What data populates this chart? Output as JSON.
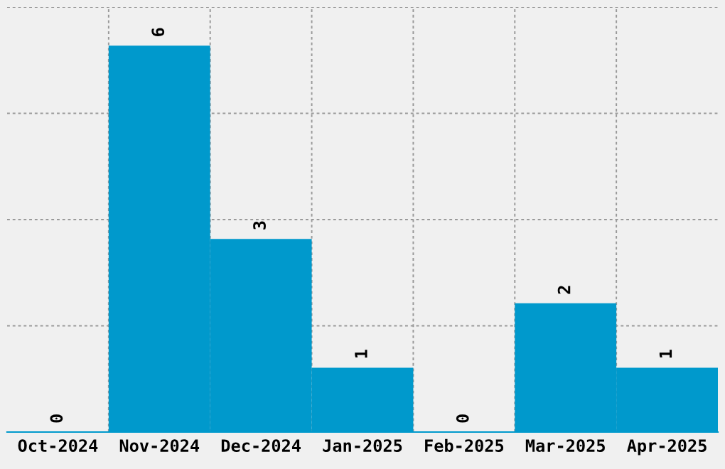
{
  "chart_data": {
    "type": "bar",
    "categories": [
      "Oct-2024",
      "Nov-2024",
      "Dec-2024",
      "Jan-2025",
      "Feb-2025",
      "Mar-2025",
      "Apr-2025"
    ],
    "values": [
      0,
      6,
      3,
      1,
      0,
      2,
      1
    ],
    "color": "#0099cc",
    "ylim": [
      0,
      6.6
    ],
    "yticks": [
      {
        "value": 0,
        "label": null
      },
      {
        "value": 1.65,
        "label": null
      },
      {
        "value": 3.3,
        "label": null
      },
      {
        "value": 4.95,
        "label": null
      },
      {
        "value": 6.6,
        "label": null
      }
    ],
    "tick_labels": "x",
    "grid": true,
    "data_labels": true
  }
}
